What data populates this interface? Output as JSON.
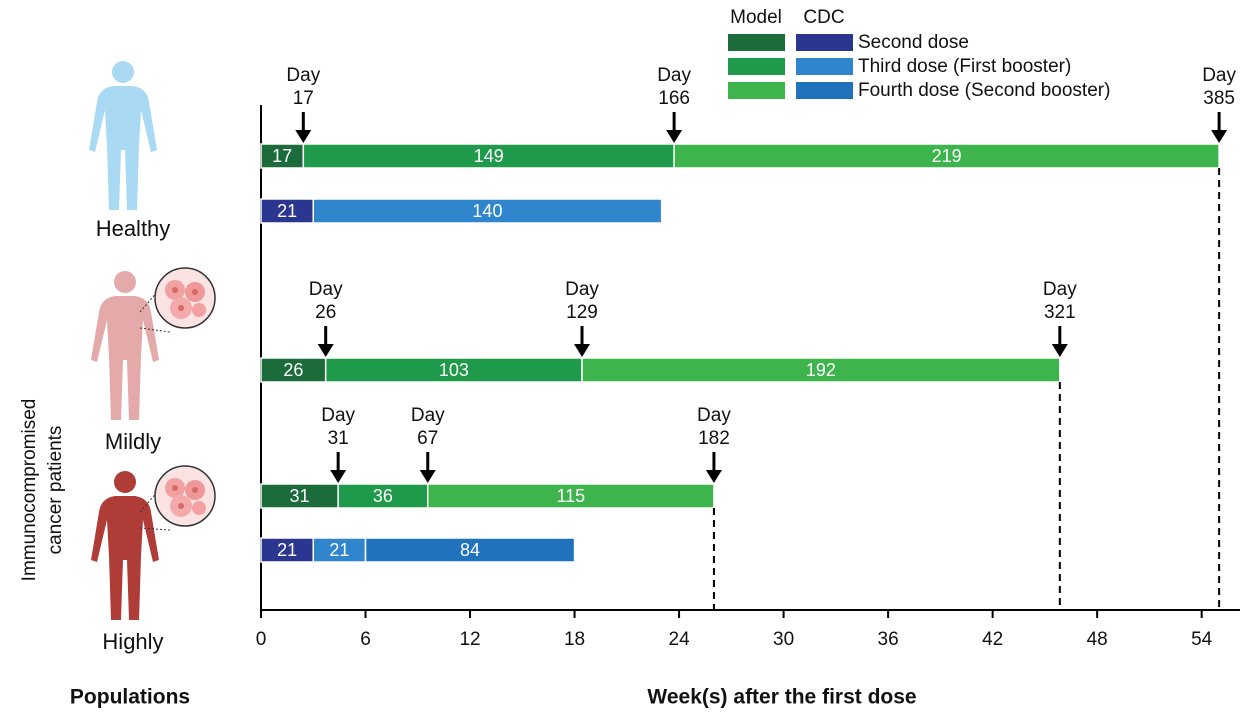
{
  "chart_data": {
    "type": "timeline",
    "xlabel": "Week(s) after the first dose",
    "ylabel": "Populations",
    "group_title": [
      "Immunocompromised",
      "cancer patients"
    ],
    "xlim": [
      0,
      56.2
    ],
    "xticks": [
      0,
      6,
      12,
      18,
      24,
      30,
      36,
      42,
      48,
      54
    ],
    "legend": {
      "headers": [
        "Model",
        "CDC"
      ],
      "entries": [
        {
          "name": "Second dose",
          "colors": [
            "#1b6b3b",
            "#2b3690"
          ]
        },
        {
          "name": "Third dose (First booster)",
          "colors": [
            "#1f9a4b",
            "#2f86cd"
          ]
        },
        {
          "name": "Fourth dose (Second booster)",
          "colors": [
            "#3db54c",
            "#1f72bb"
          ]
        }
      ]
    },
    "groups": [
      {
        "name": "Healthy",
        "rows": [
          {
            "values": [
              2.429,
              21.286,
              31.286
            ],
            "value_labels": [
              "17",
              "149",
              "219"
            ],
            "colors": [
              "#1b6b3b",
              "#1f9a4b",
              "#3db54c"
            ],
            "markers": [
              [
                "Day",
                "17"
              ],
              [
                "Day",
                "166"
              ],
              [
                "Day",
                "385"
              ]
            ],
            "end_line": true
          },
          {
            "values": [
              3,
              20
            ],
            "value_labels": [
              "21",
              "140"
            ],
            "colors": [
              "#2b3690",
              "#2f86cd"
            ]
          }
        ]
      },
      {
        "name": "Mildly",
        "rows": [
          {
            "values": [
              3.714,
              14.714,
              27.429
            ],
            "value_labels": [
              "26",
              "103",
              "192"
            ],
            "colors": [
              "#1b6b3b",
              "#1f9a4b",
              "#3db54c"
            ],
            "markers": [
              [
                "Day",
                "26"
              ],
              [
                "Day",
                "129"
              ],
              [
                "Day",
                "321"
              ]
            ],
            "end_line": true
          }
        ]
      },
      {
        "name": "Highly",
        "rows": [
          {
            "values": [
              4.429,
              5.143,
              16.429
            ],
            "value_labels": [
              "31",
              "36",
              "115"
            ],
            "colors": [
              "#1b6b3b",
              "#1f9a4b",
              "#3db54c"
            ],
            "markers": [
              [
                "Day",
                "31"
              ],
              [
                "Day",
                "67"
              ],
              [
                "Day",
                "182"
              ]
            ],
            "end_line": true
          },
          {
            "values": [
              3,
              3,
              12
            ],
            "value_labels": [
              "21",
              "21",
              "84"
            ],
            "colors": [
              "#2b3690",
              "#2f86cd",
              "#1f72bb"
            ]
          }
        ]
      }
    ]
  }
}
